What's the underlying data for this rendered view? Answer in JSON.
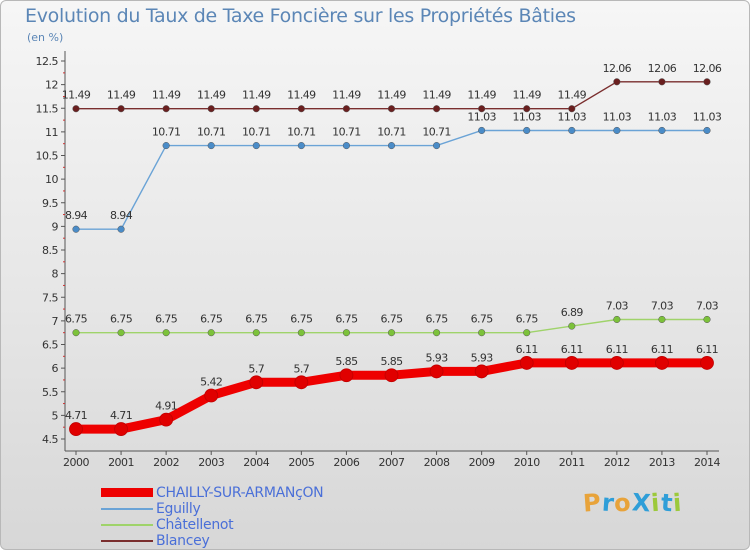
{
  "header": {
    "title": "Evolution du Taux de Taxe Foncière sur les Propriétés Bâties",
    "unit": "(en %)"
  },
  "logo": {
    "text": "ProXiti",
    "letters": [
      "P",
      "r",
      "o",
      "X",
      "i",
      "t",
      "i"
    ],
    "colors": [
      "#e8a33a",
      "#2f9ed8",
      "#e8a33a",
      "#2f9ed8",
      "#9cc93b",
      "#2f9ed8",
      "#9cc93b"
    ]
  },
  "chart_data": {
    "type": "line",
    "title": "Evolution du Taux de Taxe Foncière sur les Propriétés Bâties",
    "ylabel": "(en %)",
    "xlabel": "",
    "ylim": [
      4.5,
      12.5
    ],
    "yticks": [
      "4.5",
      "5",
      "5.5",
      "6",
      "6.5",
      "7",
      "7.5",
      "8",
      "8.5",
      "9",
      "9.5",
      "10",
      "10.5",
      "11",
      "11.5",
      "12",
      "12.5"
    ],
    "categories": [
      "2000",
      "2001",
      "2002",
      "2003",
      "2004",
      "2005",
      "2006",
      "2007",
      "2008",
      "2009",
      "2010",
      "2011",
      "2012",
      "2013",
      "2014"
    ],
    "grid": false,
    "legend_position": "bottom-left",
    "series": [
      {
        "name": "Blancey",
        "color": "#7a2e2e",
        "marker": "#6a1f1f",
        "values": [
          11.49,
          11.49,
          11.49,
          11.49,
          11.49,
          11.49,
          11.49,
          11.49,
          11.49,
          11.49,
          11.49,
          11.49,
          12.06,
          12.06,
          12.06
        ],
        "labels": [
          "11.49",
          "11.49",
          "11.49",
          "11.49",
          "11.49",
          "11.49",
          "11.49",
          "11.49",
          "11.49",
          "11.49",
          "11.49",
          "11.49",
          "12.06",
          "12.06",
          "12.06"
        ]
      },
      {
        "name": "Eguilly",
        "color": "#6aa3d6",
        "marker": "#4a8cc8",
        "values": [
          8.94,
          8.94,
          10.71,
          10.71,
          10.71,
          10.71,
          10.71,
          10.71,
          10.71,
          11.03,
          11.03,
          11.03,
          11.03,
          11.03,
          11.03
        ],
        "labels": [
          "8.94",
          "8.94",
          "10.71",
          "10.71",
          "10.71",
          "10.71",
          "10.71",
          "10.71",
          "10.71",
          "11.03",
          "11.03",
          "11.03",
          "11.03",
          "11.03",
          "11.03"
        ]
      },
      {
        "name": "Châtellenot",
        "color": "#9fd36a",
        "marker": "#7cc23a",
        "values": [
          6.75,
          6.75,
          6.75,
          6.75,
          6.75,
          6.75,
          6.75,
          6.75,
          6.75,
          6.75,
          6.75,
          6.89,
          7.03,
          7.03,
          7.03
        ],
        "labels": [
          "6.75",
          "6.75",
          "6.75",
          "6.75",
          "6.75",
          "6.75",
          "6.75",
          "6.75",
          "6.75",
          "6.75",
          "6.75",
          "6.89",
          "7.03",
          "7.03",
          "7.03"
        ]
      },
      {
        "name": "CHAILLY-SUR-ARMANçON",
        "color": "#ee0000",
        "marker": "#e00000",
        "thick": true,
        "values": [
          4.71,
          4.71,
          4.91,
          5.42,
          5.7,
          5.7,
          5.85,
          5.85,
          5.93,
          5.93,
          6.11,
          6.11,
          6.11,
          6.11,
          6.11
        ],
        "labels": [
          "4.71",
          "4.71",
          "4.91",
          "5.42",
          "5.7",
          "5.7",
          "5.85",
          "5.85",
          "5.93",
          "5.93",
          "6.11",
          "6.11",
          "6.11",
          "6.11",
          "6.11"
        ]
      }
    ],
    "legend": [
      {
        "name": "CHAILLY-SUR-ARMANçON",
        "color": "#ee0000",
        "thick": true
      },
      {
        "name": "Eguilly",
        "color": "#6aa3d6",
        "thick": false
      },
      {
        "name": "Châtellenot",
        "color": "#9fd36a",
        "thick": false
      },
      {
        "name": "Blancey",
        "color": "#7a2e2e",
        "thick": false
      }
    ]
  }
}
